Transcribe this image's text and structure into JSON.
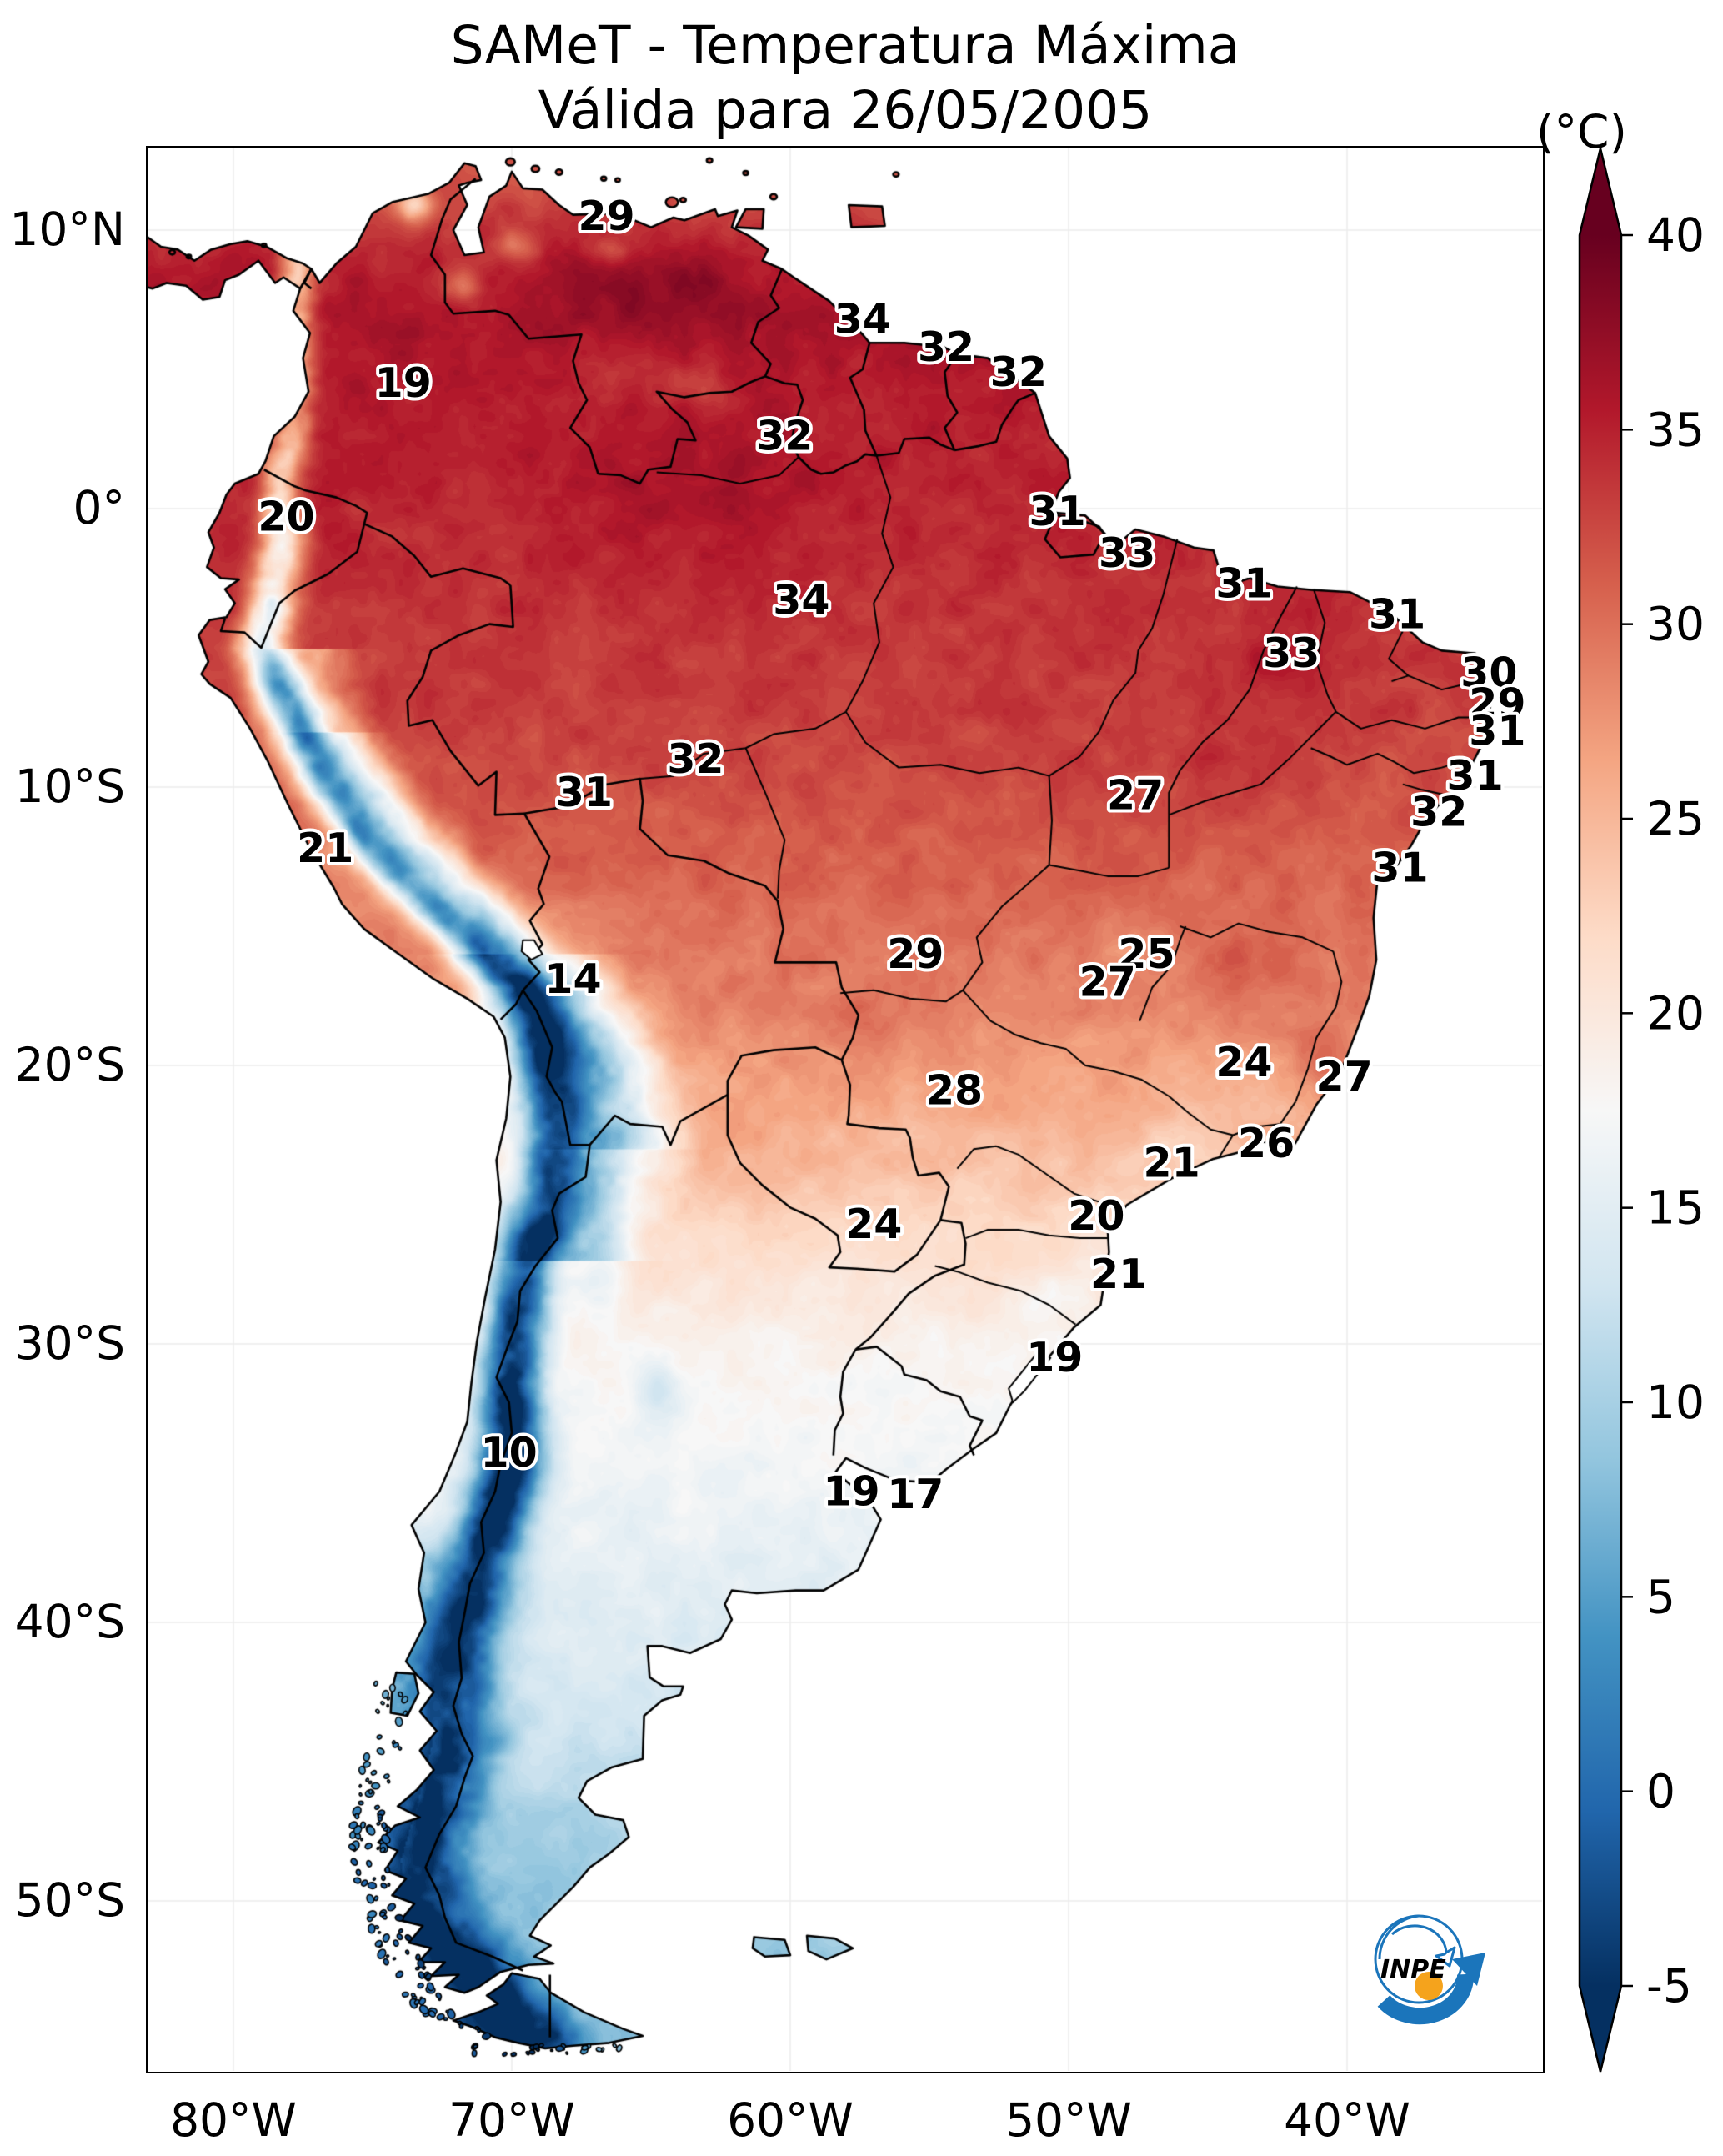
{
  "title": {
    "line1": "SAMeT - Temperatura Máxima",
    "line2": "Válida para 26/05/2005"
  },
  "colorbar": {
    "unit": "(°C)",
    "ticks": [
      40,
      35,
      30,
      25,
      20,
      15,
      10,
      5,
      0,
      -5
    ],
    "vmin": -5,
    "vmax": 40,
    "colormap": "RdBu_r",
    "stops": [
      "#053061",
      "#2166ac",
      "#4393c3",
      "#92c5de",
      "#d1e5f0",
      "#f7f7f7",
      "#fddbc7",
      "#f4a582",
      "#d6604d",
      "#b2182b",
      "#67001f"
    ]
  },
  "axis": {
    "lat_ticks": [
      {
        "label": "10°N",
        "lat": 10
      },
      {
        "label": "0°",
        "lat": 0
      },
      {
        "label": "10°S",
        "lat": -10
      },
      {
        "label": "20°S",
        "lat": -20
      },
      {
        "label": "30°S",
        "lat": -30
      },
      {
        "label": "40°S",
        "lat": -40
      },
      {
        "label": "50°S",
        "lat": -50
      }
    ],
    "lon_ticks": [
      {
        "label": "80°W",
        "lon": -80
      },
      {
        "label": "70°W",
        "lon": -70
      },
      {
        "label": "60°W",
        "lon": -60
      },
      {
        "label": "50°W",
        "lon": -50
      },
      {
        "label": "40°W",
        "lon": -40
      }
    ]
  },
  "stations": [
    {
      "value": 29,
      "lon": -66.6,
      "lat": 10.5
    },
    {
      "value": 19,
      "lon": -73.9,
      "lat": 4.5
    },
    {
      "value": 34,
      "lon": -57.4,
      "lat": 6.8
    },
    {
      "value": 32,
      "lon": -54.4,
      "lat": 5.8
    },
    {
      "value": 32,
      "lon": -51.8,
      "lat": 4.9
    },
    {
      "value": 32,
      "lon": -60.2,
      "lat": 2.6
    },
    {
      "value": 20,
      "lon": -78.1,
      "lat": -0.3
    },
    {
      "value": 31,
      "lon": -50.4,
      "lat": -0.1
    },
    {
      "value": 33,
      "lon": -47.9,
      "lat": -1.6
    },
    {
      "value": 31,
      "lon": -43.7,
      "lat": -2.7
    },
    {
      "value": 34,
      "lon": -59.6,
      "lat": -3.3
    },
    {
      "value": 33,
      "lon": -42.0,
      "lat": -5.2
    },
    {
      "value": 31,
      "lon": -38.2,
      "lat": -3.8
    },
    {
      "value": 30,
      "lon": -34.9,
      "lat": -5.9
    },
    {
      "value": 29,
      "lon": -34.6,
      "lat": -7.0
    },
    {
      "value": 31,
      "lon": -34.6,
      "lat": -8.0
    },
    {
      "value": 32,
      "lon": -63.4,
      "lat": -9.0
    },
    {
      "value": 31,
      "lon": -67.4,
      "lat": -10.2
    },
    {
      "value": 27,
      "lon": -47.6,
      "lat": -10.3
    },
    {
      "value": 31,
      "lon": -35.4,
      "lat": -9.6
    },
    {
      "value": 32,
      "lon": -36.7,
      "lat": -10.9
    },
    {
      "value": 31,
      "lon": -38.1,
      "lat": -12.9
    },
    {
      "value": 21,
      "lon": -76.7,
      "lat": -12.2
    },
    {
      "value": 14,
      "lon": -67.8,
      "lat": -16.9
    },
    {
      "value": 29,
      "lon": -55.5,
      "lat": -16.0
    },
    {
      "value": 25,
      "lon": -47.2,
      "lat": -16.0
    },
    {
      "value": 27,
      "lon": -48.6,
      "lat": -17.0
    },
    {
      "value": 28,
      "lon": -54.1,
      "lat": -20.9
    },
    {
      "value": 24,
      "lon": -43.7,
      "lat": -19.9
    },
    {
      "value": 27,
      "lon": -40.1,
      "lat": -20.4
    },
    {
      "value": 21,
      "lon": -46.3,
      "lat": -23.5
    },
    {
      "value": 26,
      "lon": -42.9,
      "lat": -22.8
    },
    {
      "value": 24,
      "lon": -57.0,
      "lat": -25.7
    },
    {
      "value": 20,
      "lon": -49.0,
      "lat": -25.4
    },
    {
      "value": 21,
      "lon": -48.2,
      "lat": -27.5
    },
    {
      "value": 19,
      "lon": -50.5,
      "lat": -30.5
    },
    {
      "value": 10,
      "lon": -70.1,
      "lat": -33.9
    },
    {
      "value": 19,
      "lon": -57.8,
      "lat": -35.3
    },
    {
      "value": 17,
      "lon": -55.5,
      "lat": -35.4
    }
  ],
  "logo": {
    "text": "INPE"
  }
}
